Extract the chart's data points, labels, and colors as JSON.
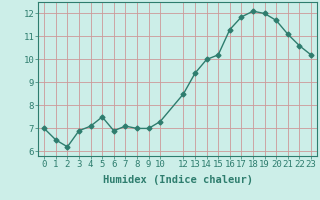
{
  "x": [
    0,
    1,
    2,
    3,
    4,
    5,
    6,
    7,
    8,
    9,
    10,
    12,
    13,
    14,
    15,
    16,
    17,
    18,
    19,
    20,
    21,
    22,
    23
  ],
  "y": [
    7.0,
    6.5,
    6.2,
    6.9,
    7.1,
    7.5,
    6.9,
    7.1,
    7.0,
    7.0,
    7.3,
    8.5,
    9.4,
    10.0,
    10.2,
    11.3,
    11.85,
    12.1,
    12.0,
    11.7,
    11.1,
    10.6,
    10.2
  ],
  "xticks": [
    0,
    1,
    2,
    3,
    4,
    5,
    6,
    7,
    8,
    9,
    10,
    12,
    13,
    14,
    15,
    16,
    17,
    18,
    19,
    20,
    21,
    22,
    23
  ],
  "xticklabels": [
    "0",
    "1",
    "2",
    "3",
    "4",
    "5",
    "6",
    "7",
    "8",
    "9",
    "10",
    "12",
    "13",
    "14",
    "15",
    "16",
    "17",
    "18",
    "19",
    "20",
    "21",
    "22",
    "23"
  ],
  "yticks": [
    6,
    7,
    8,
    9,
    10,
    11,
    12
  ],
  "yticklabels": [
    "6",
    "7",
    "8",
    "9",
    "10",
    "11",
    "12"
  ],
  "xlim": [
    -0.5,
    23.5
  ],
  "ylim": [
    5.8,
    12.5
  ],
  "xlabel": "Humidex (Indice chaleur)",
  "line_color": "#2e7d6e",
  "marker": "D",
  "marker_size": 2.5,
  "bg_color": "#cceee8",
  "grid_color": "#cc9999",
  "text_color": "#2e7d6e",
  "tick_fontsize": 6.5,
  "xlabel_fontsize": 7.5,
  "line_width": 1.0
}
